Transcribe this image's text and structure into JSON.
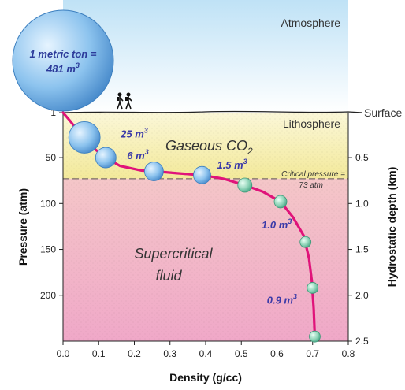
{
  "chart_data": {
    "type": "line",
    "xlabel": "Density (g/cc)",
    "ylabel": "Pressure (atm)",
    "y2label": "Hydrostatic depth (km)",
    "xlim": [
      0.0,
      0.8
    ],
    "ylim": [
      1,
      250
    ],
    "y_inverted": true,
    "x_ticks": [
      "0.0",
      "0.1",
      "0.2",
      "0.3",
      "0.4",
      "0.5",
      "0.6",
      "0.7",
      "0.8"
    ],
    "y_ticks": [
      {
        "value": 1,
        "label": "1"
      },
      {
        "value": 50,
        "label": "50"
      },
      {
        "value": 100,
        "label": "100"
      },
      {
        "value": 150,
        "label": "150"
      },
      {
        "value": 200,
        "label": "200"
      }
    ],
    "y2_ticks": [
      "0.5",
      "1.0",
      "1.5",
      "2.0",
      "2.5"
    ],
    "y2_tick_pressures": [
      50,
      100,
      150,
      200,
      250
    ],
    "curve_color": "#e0137a",
    "curve_x": [
      0.0,
      0.02,
      0.05,
      0.08,
      0.12,
      0.16,
      0.22,
      0.26,
      0.32,
      0.39,
      0.45,
      0.51,
      0.56,
      0.61,
      0.645,
      0.675,
      0.69,
      0.698,
      0.703,
      0.706
    ],
    "curve_y": [
      1,
      10,
      25,
      38,
      50,
      59,
      64,
      65,
      67,
      69,
      73,
      80,
      87,
      98,
      115,
      135,
      160,
      185,
      215,
      245
    ],
    "bubbles": [
      {
        "x": 0.06,
        "y": 28,
        "label": "25 m3"
      },
      {
        "x": 0.12,
        "y": 50,
        "label": "6 m3"
      },
      {
        "x": 0.255,
        "y": 65,
        "label": ""
      },
      {
        "x": 0.39,
        "y": 69,
        "label": "1.5 m3"
      },
      {
        "x": 0.51,
        "y": 80,
        "label": ""
      },
      {
        "x": 0.61,
        "y": 98,
        "label": "1.0 m3"
      },
      {
        "x": 0.68,
        "y": 142,
        "label": ""
      },
      {
        "x": 0.7,
        "y": 192,
        "label": "0.9 m3"
      },
      {
        "x": 0.706,
        "y": 245,
        "label": ""
      }
    ],
    "big_bubble": {
      "line1": "1 metric ton =",
      "line2": "481 m3"
    },
    "critical_pressure": {
      "value": 73,
      "line1": "Critical pressure =",
      "line2": "73 atm"
    },
    "regions": {
      "atmosphere": "Atmosphere",
      "lithosphere": "Lithosphere",
      "surface": "Surface",
      "gaseous": "Gaseous CO2",
      "supercritical_1": "Supercritical",
      "supercritical_2": "fluid"
    },
    "colors": {
      "atmosphere_top": "#bfe2f6",
      "gas_zone": "#f5f0a8",
      "fluid_zone": "#f2b8c6",
      "bubble": "#7ab8e8",
      "bubble_small": "#8fd4b8",
      "curve": "#e0137a"
    }
  }
}
